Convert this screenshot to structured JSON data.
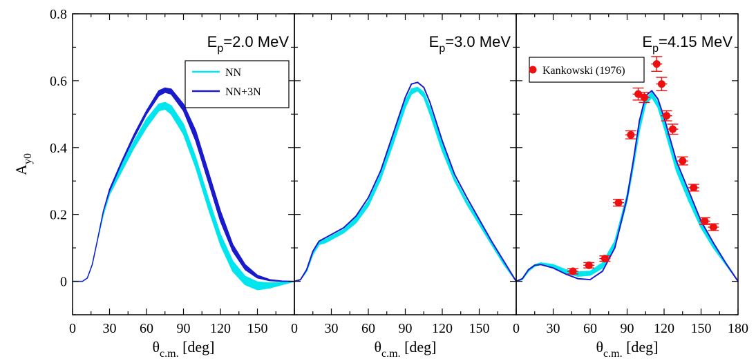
{
  "chart_data": [
    {
      "type": "line",
      "panel_label": "E_p=2.0 MeV",
      "panel_label_parts": {
        "base": "E",
        "sub": "p",
        "rest": "=2.0 MeV"
      },
      "xlabel": {
        "base": "θ",
        "sub": "c.m.",
        "rest": " [deg]"
      },
      "ylabel": {
        "base": "A",
        "sub": "y0"
      },
      "xlim": [
        0,
        180
      ],
      "ylim": [
        -0.1,
        0.8
      ],
      "x_ticks": [
        0,
        30,
        60,
        90,
        120,
        150
      ],
      "y_ticks": [
        0,
        0.2,
        0.4,
        0.6,
        0.8
      ],
      "y_tick_labels": [
        "0",
        "0.2",
        "0.4",
        "0.6",
        "0.8"
      ],
      "legend": {
        "position": "top-right",
        "entries": [
          {
            "label": "NN",
            "color": "#00e5ee"
          },
          {
            "label": "NN+3N",
            "color": "#1a1acd"
          }
        ]
      },
      "series": [
        {
          "name": "NN",
          "kind": "band",
          "color": "#00e5ee",
          "x": [
            0,
            8,
            12,
            16,
            20,
            25,
            30,
            40,
            50,
            60,
            70,
            75,
            80,
            90,
            100,
            110,
            120,
            130,
            140,
            150,
            160,
            170,
            180
          ],
          "lower": [
            0,
            0,
            0.01,
            0.05,
            0.12,
            0.2,
            0.26,
            0.33,
            0.4,
            0.46,
            0.51,
            0.515,
            0.5,
            0.44,
            0.34,
            0.22,
            0.11,
            0.03,
            -0.01,
            -0.025,
            -0.02,
            -0.01,
            0
          ],
          "upper": [
            0,
            0,
            0.01,
            0.05,
            0.12,
            0.21,
            0.27,
            0.35,
            0.42,
            0.485,
            0.53,
            0.535,
            0.525,
            0.47,
            0.37,
            0.25,
            0.14,
            0.06,
            0.015,
            -0.002,
            -0.005,
            -0.003,
            0
          ]
        },
        {
          "name": "NN+3N",
          "kind": "band",
          "color": "#1a1acd",
          "x": [
            0,
            8,
            12,
            16,
            20,
            25,
            30,
            40,
            50,
            60,
            70,
            75,
            80,
            90,
            100,
            110,
            120,
            130,
            140,
            150,
            160,
            170,
            180
          ],
          "lower": [
            0,
            0,
            0.01,
            0.05,
            0.12,
            0.21,
            0.27,
            0.355,
            0.43,
            0.5,
            0.555,
            0.565,
            0.56,
            0.51,
            0.42,
            0.3,
            0.18,
            0.09,
            0.035,
            0.01,
            0.002,
            0,
            0
          ],
          "upper": [
            0,
            0,
            0.01,
            0.05,
            0.12,
            0.21,
            0.275,
            0.36,
            0.44,
            0.51,
            0.57,
            0.578,
            0.575,
            0.53,
            0.45,
            0.33,
            0.21,
            0.11,
            0.05,
            0.018,
            0.005,
            0.001,
            0
          ]
        }
      ]
    },
    {
      "type": "line",
      "panel_label": "E_p=3.0 MeV",
      "panel_label_parts": {
        "base": "E",
        "sub": "p",
        "rest": "=3.0 MeV"
      },
      "xlabel": {
        "base": "θ",
        "sub": "c.m.",
        "rest": " [deg]"
      },
      "xlim": [
        0,
        180
      ],
      "ylim": [
        -0.1,
        0.8
      ],
      "x_ticks": [
        0,
        30,
        60,
        90,
        120,
        150
      ],
      "series": [
        {
          "name": "NN",
          "kind": "band",
          "color": "#00e5ee",
          "x": [
            0,
            5,
            10,
            15,
            20,
            25,
            30,
            40,
            50,
            60,
            70,
            80,
            90,
            95,
            100,
            105,
            110,
            120,
            130,
            140,
            150,
            160,
            170,
            180
          ],
          "lower": [
            0,
            0.005,
            0.03,
            0.08,
            0.11,
            0.115,
            0.125,
            0.145,
            0.175,
            0.225,
            0.305,
            0.41,
            0.52,
            0.56,
            0.57,
            0.55,
            0.5,
            0.39,
            0.3,
            0.23,
            0.17,
            0.11,
            0.05,
            0
          ],
          "upper": [
            0,
            0.005,
            0.035,
            0.085,
            0.12,
            0.125,
            0.135,
            0.155,
            0.19,
            0.24,
            0.32,
            0.43,
            0.54,
            0.575,
            0.58,
            0.565,
            0.52,
            0.41,
            0.31,
            0.24,
            0.18,
            0.115,
            0.055,
            0
          ]
        },
        {
          "name": "NN+3N",
          "kind": "line",
          "color": "#1a1acd",
          "x": [
            0,
            5,
            10,
            15,
            20,
            25,
            30,
            40,
            50,
            60,
            70,
            80,
            90,
            95,
            100,
            105,
            110,
            120,
            130,
            140,
            150,
            160,
            170,
            180
          ],
          "y": [
            0,
            0.005,
            0.035,
            0.09,
            0.12,
            0.13,
            0.14,
            0.16,
            0.195,
            0.25,
            0.33,
            0.44,
            0.55,
            0.59,
            0.595,
            0.58,
            0.535,
            0.42,
            0.32,
            0.25,
            0.185,
            0.12,
            0.06,
            0
          ]
        }
      ]
    },
    {
      "type": "line",
      "panel_label": "E_p=4.15 MeV",
      "panel_label_parts": {
        "base": "E",
        "sub": "p",
        "rest": "=4.15 MeV"
      },
      "xlabel": {
        "base": "θ",
        "sub": "c.m.",
        "rest": " [deg]"
      },
      "xlim": [
        0,
        180
      ],
      "ylim": [
        -0.1,
        0.8
      ],
      "x_ticks": [
        0,
        30,
        60,
        90,
        120,
        150,
        180
      ],
      "legend": {
        "position": "top-left",
        "entries": [
          {
            "label": "Kankowski (1976)",
            "color": "#ee1010"
          }
        ]
      },
      "series": [
        {
          "name": "NN",
          "kind": "band",
          "color": "#00e5ee",
          "x": [
            0,
            5,
            10,
            15,
            20,
            30,
            40,
            50,
            60,
            70,
            80,
            90,
            95,
            100,
            105,
            110,
            115,
            120,
            130,
            140,
            150,
            160,
            170,
            180
          ],
          "lower": [
            0,
            0.005,
            0.03,
            0.045,
            0.05,
            0.04,
            0.025,
            0.015,
            0.018,
            0.04,
            0.1,
            0.24,
            0.34,
            0.45,
            0.53,
            0.55,
            0.52,
            0.46,
            0.33,
            0.24,
            0.16,
            0.1,
            0.05,
            0
          ],
          "upper": [
            0,
            0.008,
            0.035,
            0.05,
            0.055,
            0.05,
            0.035,
            0.028,
            0.03,
            0.055,
            0.12,
            0.26,
            0.36,
            0.47,
            0.545,
            0.565,
            0.535,
            0.48,
            0.35,
            0.26,
            0.175,
            0.11,
            0.055,
            0
          ]
        },
        {
          "name": "NN+3N",
          "kind": "line",
          "color": "#1a1acd",
          "x": [
            0,
            5,
            10,
            15,
            20,
            30,
            40,
            50,
            60,
            70,
            80,
            90,
            95,
            100,
            105,
            110,
            115,
            120,
            130,
            140,
            150,
            160,
            170,
            180
          ],
          "y": [
            0,
            0.008,
            0.035,
            0.048,
            0.05,
            0.04,
            0.022,
            0.008,
            0.005,
            0.03,
            0.1,
            0.25,
            0.36,
            0.48,
            0.555,
            0.57,
            0.545,
            0.49,
            0.36,
            0.27,
            0.18,
            0.115,
            0.055,
            0
          ]
        },
        {
          "name": "Kankowski (1976)",
          "kind": "points",
          "color": "#ee1010",
          "x": [
            46,
            59,
            72,
            83,
            93,
            99,
            104,
            114,
            118,
            122,
            127,
            135,
            144,
            153,
            160
          ],
          "y": [
            0.03,
            0.048,
            0.068,
            0.235,
            0.438,
            0.56,
            0.55,
            0.65,
            0.59,
            0.495,
            0.455,
            0.36,
            0.28,
            0.18,
            0.162
          ],
          "yerr": [
            0.008,
            0.008,
            0.008,
            0.01,
            0.012,
            0.018,
            0.015,
            0.022,
            0.02,
            0.015,
            0.015,
            0.012,
            0.01,
            0.01,
            0.01
          ]
        }
      ]
    }
  ]
}
